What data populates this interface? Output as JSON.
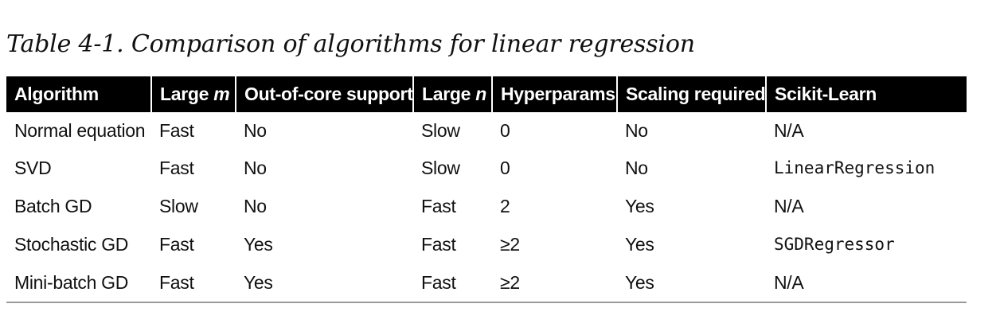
{
  "caption": "Table 4-1. Comparison of algorithms for linear regression",
  "columns": [
    {
      "text": "Algorithm",
      "var": ""
    },
    {
      "text": "Large ",
      "var": "m"
    },
    {
      "text": "Out-of-core support",
      "var": ""
    },
    {
      "text": "Large ",
      "var": "n"
    },
    {
      "text": "Hyperparams",
      "var": ""
    },
    {
      "text": "Scaling required",
      "var": ""
    },
    {
      "text": "Scikit-Learn",
      "var": ""
    }
  ],
  "rows": [
    {
      "algorithm": "Normal equation",
      "large_m": "Fast",
      "out_of_core": "No",
      "large_n": "Slow",
      "hyperparams": "0",
      "scaling": "No",
      "sklearn": "N/A",
      "sklearn_code": false
    },
    {
      "algorithm": "SVD",
      "large_m": "Fast",
      "out_of_core": "No",
      "large_n": "Slow",
      "hyperparams": "0",
      "scaling": "No",
      "sklearn": "LinearRegression",
      "sklearn_code": true
    },
    {
      "algorithm": "Batch GD",
      "large_m": "Slow",
      "out_of_core": "No",
      "large_n": "Fast",
      "hyperparams": "2",
      "scaling": "Yes",
      "sklearn": "N/A",
      "sklearn_code": false
    },
    {
      "algorithm": "Stochastic GD",
      "large_m": "Fast",
      "out_of_core": "Yes",
      "large_n": "Fast",
      "hyperparams": "≥2",
      "scaling": "Yes",
      "sklearn": "SGDRegressor",
      "sklearn_code": true
    },
    {
      "algorithm": "Mini-batch GD",
      "large_m": "Fast",
      "out_of_core": "Yes",
      "large_n": "Fast",
      "hyperparams": "≥2",
      "scaling": "Yes",
      "sklearn": "N/A",
      "sklearn_code": false
    }
  ]
}
